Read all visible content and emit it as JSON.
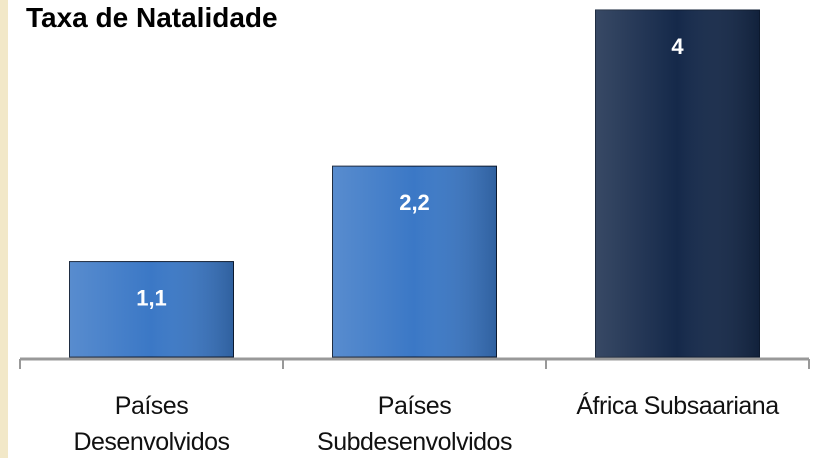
{
  "chart_data": {
    "type": "bar",
    "title": "Taxa de Natalidade",
    "categories": [
      "Países\nDesenvolvidos",
      "Países\nSubdesenvolvidos",
      "África Subsaariana"
    ],
    "values": [
      1.1,
      2.2,
      4
    ],
    "value_labels": [
      "1,1",
      "2,2",
      "4"
    ],
    "colors": [
      "#3b78c6",
      "#3b78c6",
      "#15294a"
    ]
  }
}
